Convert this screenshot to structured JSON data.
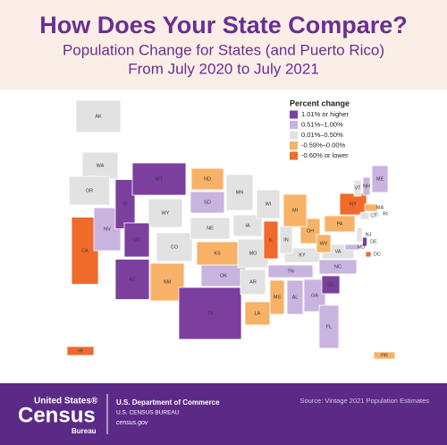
{
  "header": {
    "title": "How Does Your State Compare?",
    "subtitle_lines": [
      "Population Change for States (and Puerto Rico)",
      "From July 2020 to July 2021"
    ]
  },
  "legend": {
    "title": "Percent change",
    "items": [
      {
        "label": "1.01% or higher",
        "color": "#7b3f9e"
      },
      {
        "label": "0.51%–1.00%",
        "color": "#c9b3e0"
      },
      {
        "label": "0.01%–0.50%",
        "color": "#e2e2e2"
      },
      {
        "label": "-0.59%–0.00%",
        "color": "#f7b267"
      },
      {
        "label": "-0.60% or lower",
        "color": "#f06a2a"
      }
    ]
  },
  "states": [
    {
      "label": "AK",
      "color": "#e2e2e2"
    },
    {
      "label": "WA",
      "color": "#e2e2e2"
    },
    {
      "label": "OR",
      "color": "#e2e2e2"
    },
    {
      "label": "CA",
      "color": "#f06a2a"
    },
    {
      "label": "NV",
      "color": "#c9b3e0"
    },
    {
      "label": "ID",
      "color": "#7b3f9e"
    },
    {
      "label": "MT",
      "color": "#7b3f9e"
    },
    {
      "label": "WY",
      "color": "#e2e2e2"
    },
    {
      "label": "UT",
      "color": "#7b3f9e"
    },
    {
      "label": "AZ",
      "color": "#7b3f9e"
    },
    {
      "label": "CO",
      "color": "#e2e2e2"
    },
    {
      "label": "NM",
      "color": "#f7b267"
    },
    {
      "label": "ND",
      "color": "#f7b267"
    },
    {
      "label": "SD",
      "color": "#c9b3e0"
    },
    {
      "label": "NE",
      "color": "#e2e2e2"
    },
    {
      "label": "KS",
      "color": "#f7b267"
    },
    {
      "label": "OK",
      "color": "#c9b3e0"
    },
    {
      "label": "TX",
      "color": "#7b3f9e"
    },
    {
      "label": "MN",
      "color": "#e2e2e2"
    },
    {
      "label": "IA",
      "color": "#e2e2e2"
    },
    {
      "label": "MO",
      "color": "#e2e2e2"
    },
    {
      "label": "AR",
      "color": "#e2e2e2"
    },
    {
      "label": "LA",
      "color": "#f7b267"
    },
    {
      "label": "WI",
      "color": "#e2e2e2"
    },
    {
      "label": "IL",
      "color": "#f06a2a"
    },
    {
      "label": "MS",
      "color": "#f7b267"
    },
    {
      "label": "AL",
      "color": "#c9b3e0"
    },
    {
      "label": "TN",
      "color": "#c9b3e0"
    },
    {
      "label": "KY",
      "color": "#e2e2e2"
    },
    {
      "label": "IN",
      "color": "#e2e2e2"
    },
    {
      "label": "OH",
      "color": "#f7b267"
    },
    {
      "label": "MI",
      "color": "#f7b267"
    },
    {
      "label": "GA",
      "color": "#c9b3e0"
    },
    {
      "label": "FL",
      "color": "#c9b3e0"
    },
    {
      "label": "SC",
      "color": "#7b3f9e"
    },
    {
      "label": "NC",
      "color": "#c9b3e0"
    },
    {
      "label": "VA",
      "color": "#e2e2e2"
    },
    {
      "label": "WV",
      "color": "#f7b267"
    },
    {
      "label": "PA",
      "color": "#f7b267"
    },
    {
      "label": "NY",
      "color": "#f06a2a"
    },
    {
      "label": "VT",
      "color": "#e2e2e2"
    },
    {
      "label": "NH",
      "color": "#c9b3e0"
    },
    {
      "label": "ME",
      "color": "#c9b3e0"
    },
    {
      "label": "MA",
      "color": "#f7b267"
    },
    {
      "label": "CT",
      "color": "#e2e2e2"
    },
    {
      "label": "RI",
      "color": "#e2e2e2"
    },
    {
      "label": "NJ",
      "color": "#e2e2e2"
    },
    {
      "label": "DE",
      "color": "#7b3f9e"
    },
    {
      "label": "MD",
      "color": "#c9b3e0"
    },
    {
      "label": "DC",
      "color": "#f06a2a"
    },
    {
      "label": "HI",
      "color": "#f06a2a"
    },
    {
      "label": "PR",
      "color": "#f7b267"
    }
  ],
  "footer": {
    "logo_top": "United States®",
    "logo_main": "Census",
    "logo_bottom": "Bureau",
    "department": "U.S. Department of Commerce",
    "bureau": "U.S. CENSUS BUREAU",
    "website": "census.gov",
    "source": "Source: Vintage 2021 Population Estimates"
  }
}
